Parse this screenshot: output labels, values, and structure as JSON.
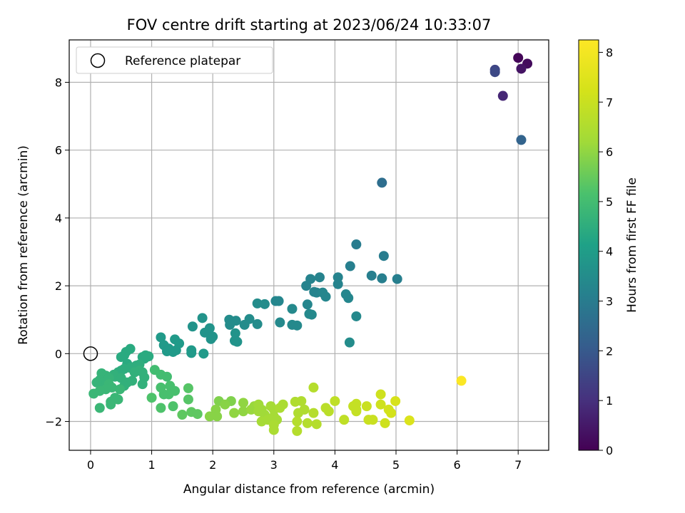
{
  "chart_data": {
    "type": "scatter",
    "title": "FOV centre drift starting at 2023/06/24 10:33:07",
    "xlabel": "Angular distance from reference (arcmin)",
    "ylabel": "Rotation from reference (arcmin)",
    "xlim": [
      -0.35,
      7.5
    ],
    "ylim": [
      -2.85,
      9.25
    ],
    "xticks": [
      0,
      1,
      2,
      3,
      4,
      5,
      6,
      7
    ],
    "yticks": [
      -2,
      0,
      2,
      4,
      6,
      8
    ],
    "grid": true,
    "legend": {
      "placement": "top-left",
      "entries": [
        "Reference platepar"
      ]
    },
    "reference_point": {
      "x": 0,
      "y": 0
    },
    "colorbar": {
      "label": "Hours from first FF file",
      "range": [
        0,
        8.25
      ],
      "ticks": [
        0,
        1,
        2,
        3,
        4,
        5,
        6,
        7,
        8
      ],
      "colormap": "viridis"
    },
    "points": [
      [
        7.0,
        8.72,
        0.1
      ],
      [
        7.15,
        8.55,
        0.2
      ],
      [
        7.05,
        8.4,
        0.4
      ],
      [
        6.75,
        7.6,
        0.8
      ],
      [
        6.62,
        8.37,
        1.5
      ],
      [
        6.62,
        8.3,
        1.6
      ],
      [
        7.05,
        6.3,
        2.3
      ],
      [
        4.77,
        5.04,
        2.6
      ],
      [
        4.35,
        3.22,
        3.0
      ],
      [
        4.8,
        2.88,
        3.0
      ],
      [
        4.25,
        2.58,
        3.1
      ],
      [
        4.6,
        2.3,
        3.1
      ],
      [
        4.77,
        2.22,
        3.1
      ],
      [
        5.02,
        2.2,
        3.1
      ],
      [
        3.75,
        2.25,
        3.2
      ],
      [
        3.6,
        2.2,
        3.2
      ],
      [
        4.05,
        2.25,
        3.2
      ],
      [
        3.53,
        2.0,
        3.2
      ],
      [
        4.05,
        2.05,
        3.2
      ],
      [
        3.66,
        1.82,
        3.2
      ],
      [
        3.7,
        1.8,
        3.2
      ],
      [
        3.8,
        1.8,
        3.3
      ],
      [
        3.85,
        1.68,
        3.3
      ],
      [
        4.18,
        1.75,
        3.3
      ],
      [
        4.22,
        1.64,
        3.3
      ],
      [
        3.55,
        1.45,
        3.3
      ],
      [
        3.03,
        1.55,
        3.3
      ],
      [
        3.08,
        1.55,
        3.3
      ],
      [
        3.58,
        1.17,
        3.4
      ],
      [
        3.62,
        1.15,
        3.4
      ],
      [
        3.3,
        1.32,
        3.4
      ],
      [
        4.35,
        1.1,
        3.4
      ],
      [
        3.1,
        0.92,
        3.4
      ],
      [
        3.3,
        0.85,
        3.4
      ],
      [
        3.38,
        0.83,
        3.4
      ],
      [
        2.73,
        1.48,
        3.5
      ],
      [
        2.85,
        1.46,
        3.5
      ],
      [
        2.6,
        1.02,
        3.5
      ],
      [
        2.27,
        1.0,
        3.5
      ],
      [
        2.38,
        0.97,
        3.5
      ],
      [
        2.28,
        0.85,
        3.5
      ],
      [
        2.52,
        0.85,
        3.5
      ],
      [
        2.73,
        0.87,
        3.5
      ],
      [
        4.24,
        0.33,
        3.5
      ],
      [
        1.83,
        1.05,
        3.7
      ],
      [
        1.67,
        0.8,
        3.7
      ],
      [
        1.95,
        0.75,
        3.7
      ],
      [
        1.87,
        0.62,
        3.7
      ],
      [
        2.0,
        0.5,
        3.7
      ],
      [
        1.97,
        0.43,
        3.7
      ],
      [
        2.37,
        0.6,
        3.7
      ],
      [
        2.36,
        0.38,
        3.7
      ],
      [
        2.4,
        0.35,
        3.7
      ],
      [
        1.15,
        0.48,
        3.9
      ],
      [
        1.38,
        0.42,
        3.9
      ],
      [
        1.45,
        0.3,
        3.9
      ],
      [
        1.2,
        0.25,
        3.9
      ],
      [
        1.28,
        0.15,
        3.9
      ],
      [
        1.25,
        0.07,
        3.9
      ],
      [
        1.35,
        0.05,
        3.9
      ],
      [
        1.4,
        0.1,
        3.9
      ],
      [
        1.65,
        0.1,
        3.9
      ],
      [
        1.65,
        0.02,
        3.9
      ],
      [
        1.85,
        0.0,
        3.9
      ],
      [
        0.65,
        0.14,
        4.4
      ],
      [
        0.58,
        0.05,
        4.4
      ],
      [
        0.5,
        -0.1,
        4.4
      ],
      [
        0.55,
        -0.05,
        4.4
      ],
      [
        0.9,
        -0.05,
        4.4
      ],
      [
        0.95,
        -0.08,
        4.4
      ],
      [
        0.85,
        -0.1,
        4.4
      ],
      [
        0.88,
        -0.15,
        4.4
      ],
      [
        0.6,
        -0.3,
        4.4
      ],
      [
        0.75,
        -0.35,
        4.5
      ],
      [
        0.8,
        -0.32,
        4.5
      ],
      [
        0.7,
        -0.4,
        4.5
      ],
      [
        0.65,
        -0.42,
        4.5
      ],
      [
        0.55,
        -0.45,
        4.5
      ],
      [
        0.5,
        -0.5,
        4.5
      ],
      [
        0.45,
        -0.55,
        4.5
      ],
      [
        0.38,
        -0.62,
        4.6
      ],
      [
        0.4,
        -0.68,
        4.6
      ],
      [
        0.5,
        -0.72,
        4.6
      ],
      [
        0.72,
        -0.55,
        4.6
      ],
      [
        0.8,
        -0.5,
        4.6
      ],
      [
        0.85,
        -0.55,
        4.6
      ],
      [
        0.88,
        -0.7,
        4.6
      ],
      [
        0.68,
        -0.8,
        4.6
      ],
      [
        0.6,
        -0.85,
        4.6
      ],
      [
        0.55,
        -0.95,
        4.6
      ],
      [
        0.85,
        -0.9,
        4.6
      ],
      [
        0.18,
        -0.58,
        4.7
      ],
      [
        0.25,
        -0.65,
        4.7
      ],
      [
        0.3,
        -0.72,
        4.7
      ],
      [
        0.15,
        -0.78,
        4.7
      ],
      [
        0.2,
        -0.85,
        4.7
      ],
      [
        0.1,
        -0.85,
        4.7
      ],
      [
        0.3,
        -0.9,
        4.8
      ],
      [
        0.35,
        -1.0,
        4.8
      ],
      [
        0.48,
        -1.05,
        4.8
      ],
      [
        0.25,
        -1.05,
        4.8
      ],
      [
        0.15,
        -1.1,
        4.8
      ],
      [
        0.05,
        -1.18,
        4.8
      ],
      [
        0.4,
        -1.3,
        4.8
      ],
      [
        0.33,
        -1.42,
        4.8
      ],
      [
        0.45,
        -1.35,
        4.8
      ],
      [
        0.33,
        -1.5,
        4.8
      ],
      [
        0.15,
        -1.6,
        4.8
      ],
      [
        1.05,
        -0.48,
        5.0
      ],
      [
        1.15,
        -0.62,
        5.0
      ],
      [
        1.25,
        -0.68,
        5.0
      ],
      [
        1.3,
        -0.95,
        5.1
      ],
      [
        1.38,
        -1.1,
        5.1
      ],
      [
        1.2,
        -1.2,
        5.1
      ],
      [
        1.15,
        -1.0,
        5.1
      ],
      [
        1.28,
        -1.2,
        5.1
      ],
      [
        1.0,
        -1.3,
        5.2
      ],
      [
        1.35,
        -1.55,
        5.2
      ],
      [
        1.15,
        -1.6,
        5.2
      ],
      [
        1.6,
        -1.02,
        5.3
      ],
      [
        1.6,
        -1.35,
        5.3
      ],
      [
        1.5,
        -1.8,
        5.4
      ],
      [
        1.65,
        -1.72,
        5.4
      ],
      [
        1.75,
        -1.78,
        5.4
      ],
      [
        2.1,
        -1.4,
        5.8
      ],
      [
        2.3,
        -1.4,
        5.8
      ],
      [
        2.2,
        -1.5,
        5.9
      ],
      [
        2.05,
        -1.65,
        5.9
      ],
      [
        1.95,
        -1.85,
        5.9
      ],
      [
        2.07,
        -1.85,
        5.9
      ],
      [
        2.35,
        -1.75,
        6.0
      ],
      [
        2.5,
        -1.45,
        6.0
      ],
      [
        2.5,
        -1.7,
        6.0
      ],
      [
        2.63,
        -1.65,
        6.1
      ],
      [
        2.68,
        -1.55,
        6.1
      ],
      [
        2.75,
        -1.5,
        6.2
      ],
      [
        2.75,
        -1.7,
        6.2
      ],
      [
        2.8,
        -1.65,
        6.2
      ],
      [
        2.85,
        -1.8,
        6.2
      ],
      [
        2.8,
        -2.0,
        6.3
      ],
      [
        2.9,
        -1.95,
        6.3
      ],
      [
        2.95,
        -1.55,
        6.3
      ],
      [
        3.0,
        -1.65,
        6.3
      ],
      [
        3.0,
        -1.85,
        6.3
      ],
      [
        3.05,
        -1.95,
        6.3
      ],
      [
        3.1,
        -1.6,
        6.4
      ],
      [
        3.15,
        -1.5,
        6.4
      ],
      [
        3.0,
        -2.1,
        6.4
      ],
      [
        3.0,
        -2.25,
        6.4
      ],
      [
        3.35,
        -1.42,
        6.5
      ],
      [
        3.45,
        -1.4,
        6.5
      ],
      [
        3.5,
        -1.65,
        6.5
      ],
      [
        3.4,
        -1.75,
        6.5
      ],
      [
        3.55,
        -2.05,
        6.6
      ],
      [
        3.65,
        -1.75,
        6.6
      ],
      [
        3.65,
        -1.0,
        6.6
      ],
      [
        3.7,
        -2.08,
        6.6
      ],
      [
        3.38,
        -2.0,
        6.6
      ],
      [
        3.38,
        -2.28,
        6.6
      ],
      [
        3.85,
        -1.6,
        6.7
      ],
      [
        3.9,
        -1.7,
        6.7
      ],
      [
        4.0,
        -1.4,
        6.8
      ],
      [
        4.15,
        -1.95,
        6.8
      ],
      [
        4.3,
        -1.55,
        6.9
      ],
      [
        4.35,
        -1.65,
        6.9
      ],
      [
        4.35,
        -1.48,
        6.9
      ],
      [
        4.35,
        -1.7,
        6.9
      ],
      [
        4.52,
        -1.55,
        7.0
      ],
      [
        4.55,
        -1.95,
        7.0
      ],
      [
        4.62,
        -1.95,
        7.0
      ],
      [
        4.75,
        -1.2,
        7.1
      ],
      [
        4.75,
        -1.5,
        7.1
      ],
      [
        4.82,
        -2.05,
        7.1
      ],
      [
        4.88,
        -1.65,
        7.2
      ],
      [
        4.92,
        -1.75,
        7.2
      ],
      [
        4.99,
        -1.4,
        7.3
      ],
      [
        5.22,
        -1.97,
        7.4
      ],
      [
        6.07,
        -0.8,
        8.2
      ]
    ]
  }
}
